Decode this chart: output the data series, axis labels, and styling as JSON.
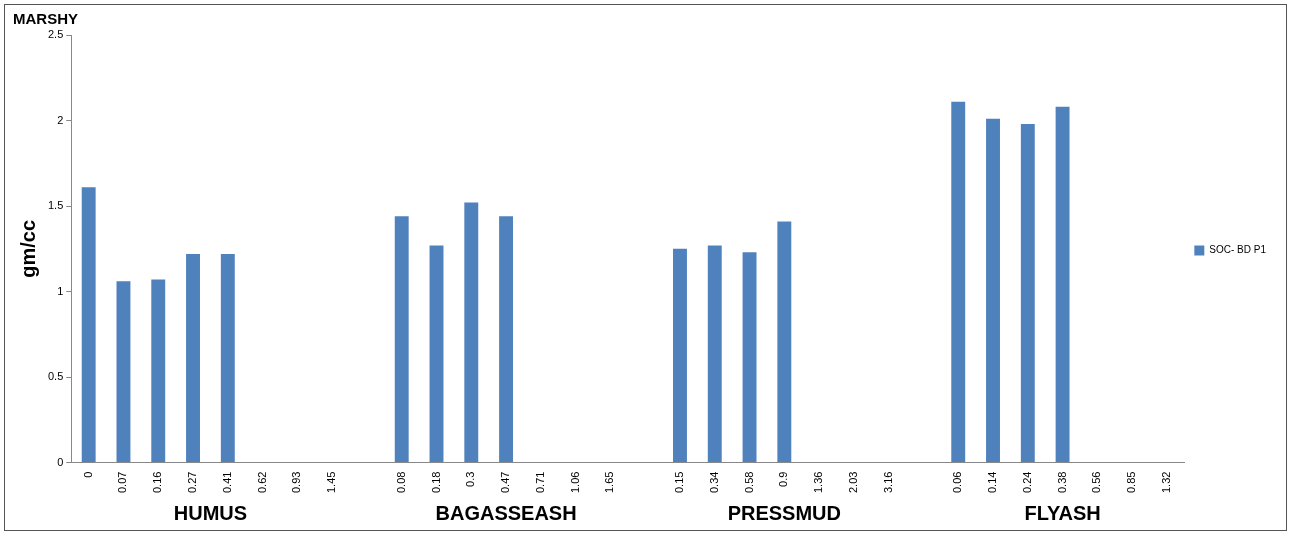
{
  "chart_data": {
    "type": "bar",
    "title": "MARSHY",
    "ylabel": "gm/cc",
    "categories": [
      "0",
      "0.07",
      "0.16",
      "0.27",
      "0.41",
      "0.62",
      "0.93",
      "1.45",
      null,
      "0.08",
      "0.18",
      "0.3",
      "0.47",
      "0.71",
      "1.06",
      "1.65",
      null,
      "0.15",
      "0.34",
      "0.58",
      "0.9",
      "1.36",
      "2.03",
      "3.16",
      null,
      "0.06",
      "0.14",
      "0.24",
      "0.38",
      "0.56",
      "0.85",
      "1.32"
    ],
    "series": [
      {
        "name": "SOC- BD P1",
        "color": "#4f81bd",
        "values": [
          1.61,
          1.06,
          1.07,
          1.22,
          1.22,
          null,
          null,
          null,
          null,
          1.44,
          1.27,
          1.52,
          1.44,
          null,
          null,
          null,
          null,
          1.25,
          1.27,
          1.23,
          1.41,
          null,
          null,
          null,
          null,
          2.11,
          2.01,
          1.98,
          2.08,
          null,
          null,
          null
        ]
      }
    ],
    "annotations": [
      "HUMUS",
      "BAGASSEASH",
      "PRESSMUD",
      "FLYASH"
    ],
    "ylim": [
      0,
      2.5
    ],
    "yticks": [
      0,
      0.5,
      1,
      1.5,
      2,
      2.5
    ],
    "grid": false,
    "legend": "right"
  }
}
